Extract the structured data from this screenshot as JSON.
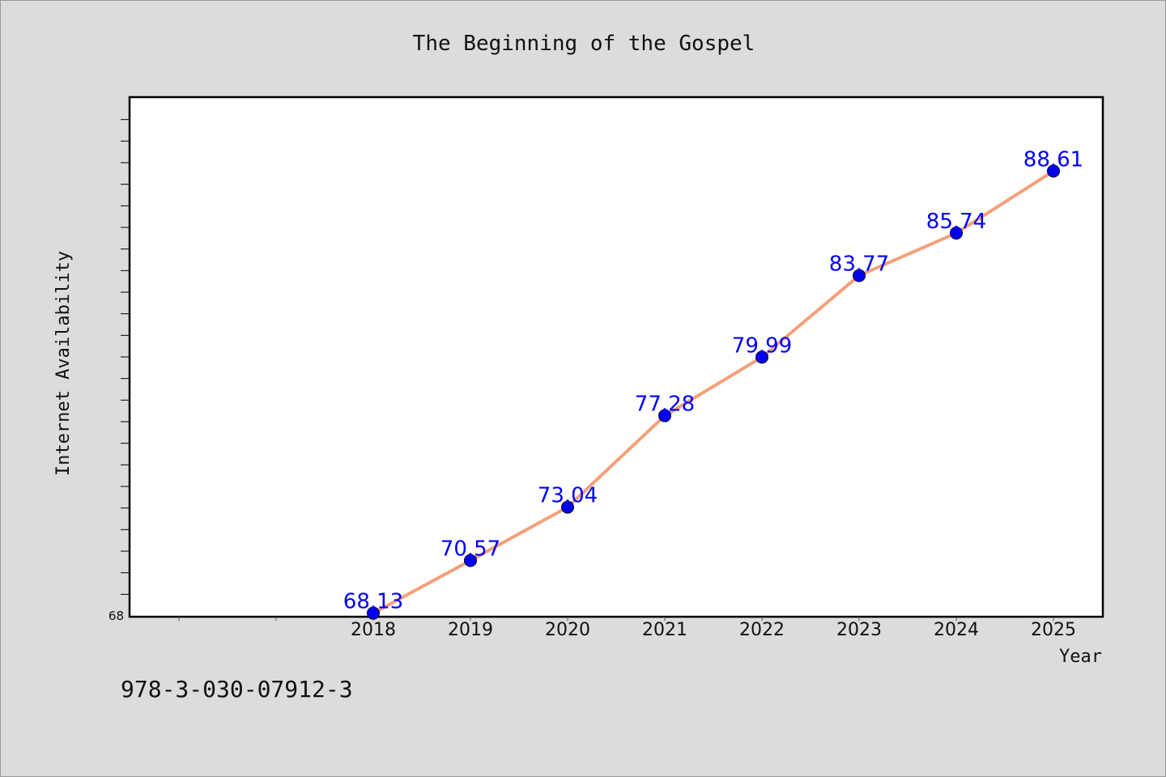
{
  "isbn": "978-3-030-07912-3",
  "chart_data": {
    "type": "line",
    "title": "The Beginning of the Gospel",
    "xlabel": "Year",
    "ylabel": "Internet Availability",
    "categories": [
      "2018",
      "2019",
      "2020",
      "2021",
      "2022",
      "2023",
      "2024",
      "2025"
    ],
    "series": [
      {
        "values": [
          68.13,
          70.57,
          73.04,
          77.28,
          79.99,
          83.77,
          85.74,
          88.61
        ],
        "labels": [
          "68.13",
          "70.57",
          "73.04",
          "77.28",
          "79.99",
          "83.77",
          "85.74",
          "88.61"
        ]
      }
    ],
    "ylim": [
      68,
      92
    ],
    "y_tick_labels": [
      "68"
    ],
    "grid": false,
    "colors": {
      "line": "#f4a07a",
      "marker": "#0000ee",
      "data_label": "#0000ff",
      "plot_background": "#ffffff",
      "page_background": "#dcdcdc"
    }
  }
}
